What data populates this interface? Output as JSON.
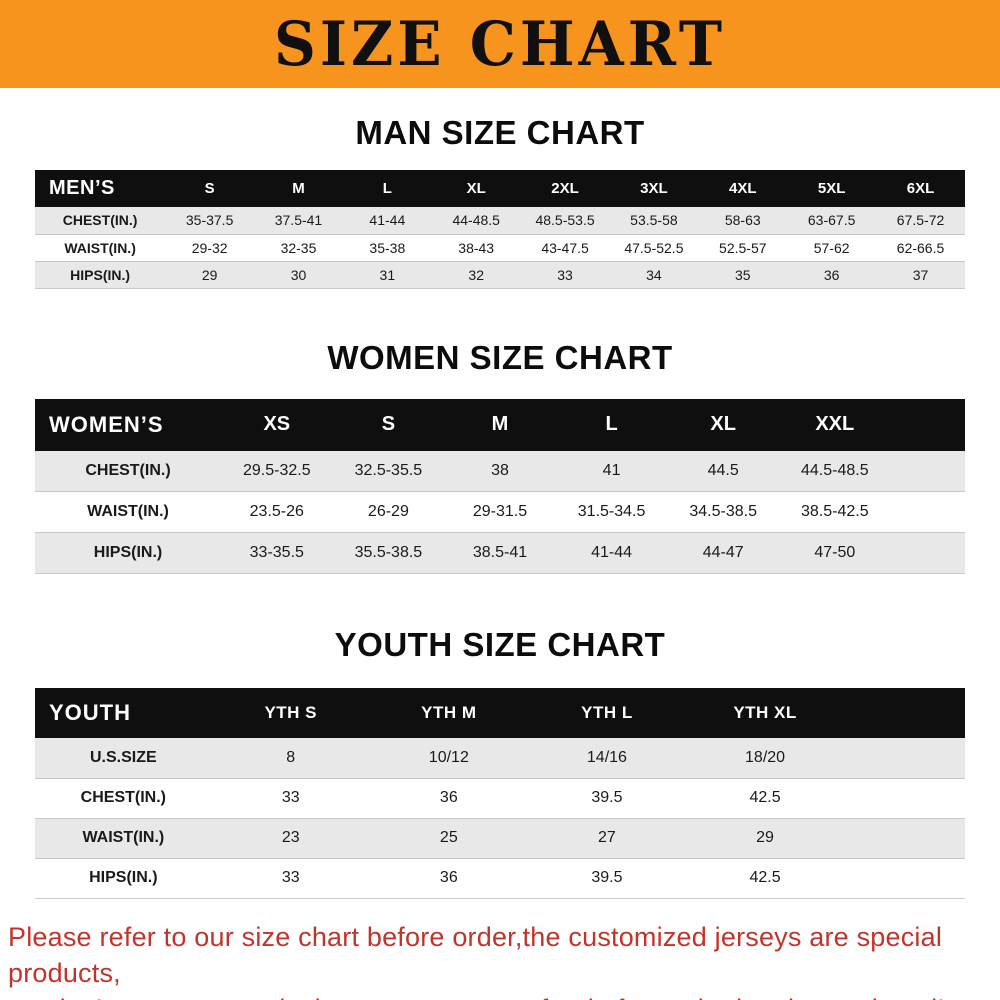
{
  "banner": {
    "title": "SIZE CHART"
  },
  "colors": {
    "banner_bg": "#F7941E",
    "table_header_bg": "#0f0f0f",
    "row_stripe": "#e8e8e8",
    "footer_text": "#C2342B"
  },
  "sections": [
    {
      "id": "men",
      "heading": "MAN SIZE CHART",
      "table": {
        "header": [
          "MEN’S",
          "S",
          "M",
          "L",
          "XL",
          "2XL",
          "3XL",
          "4XL",
          "5XL",
          "6XL"
        ],
        "rows": [
          [
            "CHEST(IN.)",
            "35-37.5",
            "37.5-41",
            "41-44",
            "44-48.5",
            "48.5-53.5",
            "53.5-58",
            "58-63",
            "63-67.5",
            "67.5-72"
          ],
          [
            "WAIST(IN.)",
            "29-32",
            "32-35",
            "35-38",
            "38-43",
            "43-47.5",
            "47.5-52.5",
            "52.5-57",
            "57-62",
            "62-66.5"
          ],
          [
            "HIPS(IN.)",
            "29",
            "30",
            "31",
            "32",
            "33",
            "34",
            "35",
            "36",
            "37"
          ]
        ]
      }
    },
    {
      "id": "women",
      "heading": "WOMEN SIZE CHART",
      "table": {
        "header": [
          "WOMEN’S",
          "XS",
          "S",
          "M",
          "L",
          "XL",
          "XXL"
        ],
        "rows": [
          [
            "CHEST(IN.)",
            "29.5-32.5",
            "32.5-35.5",
            "38",
            "41",
            "44.5",
            "44.5-48.5"
          ],
          [
            "WAIST(IN.)",
            "23.5-26",
            "26-29",
            "29-31.5",
            "31.5-34.5",
            "34.5-38.5",
            "38.5-42.5"
          ],
          [
            "HIPS(IN.)",
            "33-35.5",
            "35.5-38.5",
            "38.5-41",
            "41-44",
            "44-47",
            "47-50"
          ]
        ]
      }
    },
    {
      "id": "youth",
      "heading": "YOUTH SIZE CHART",
      "table": {
        "header": [
          "YOUTH",
          "YTH S",
          "YTH M",
          "YTH L",
          "YTH XL"
        ],
        "rows": [
          [
            "U.S.SIZE",
            "8",
            "10/12",
            "14/16",
            "18/20"
          ],
          [
            "CHEST(IN.)",
            "33",
            "36",
            "39.5",
            "42.5"
          ],
          [
            "WAIST(IN.)",
            "23",
            "25",
            "27",
            "29"
          ],
          [
            "HIPS(IN.)",
            "33",
            "36",
            "39.5",
            "42.5"
          ]
        ]
      }
    }
  ],
  "footer": {
    "lines": [
      "Please refer to our size chart before order,the customized jerseys are special products,",
      "we don’t accept cancel, change, teturn or refund after order has been placed!"
    ]
  }
}
